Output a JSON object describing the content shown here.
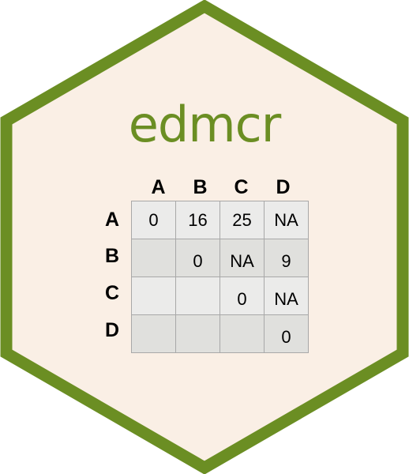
{
  "title": "edmcr",
  "colors": {
    "hex_border": "#6b8e23",
    "hex_fill": "#faefe5",
    "title": "#6b8e23"
  },
  "matrix": {
    "col_headers": [
      "A",
      "B",
      "C",
      "D"
    ],
    "row_headers": [
      "A",
      "B",
      "C",
      "D"
    ],
    "rows": [
      [
        "0",
        "16",
        "25",
        "NA"
      ],
      [
        "",
        "0",
        "NA",
        "9"
      ],
      [
        "",
        "",
        "0",
        "NA"
      ],
      [
        "",
        "",
        "",
        "0"
      ]
    ]
  }
}
